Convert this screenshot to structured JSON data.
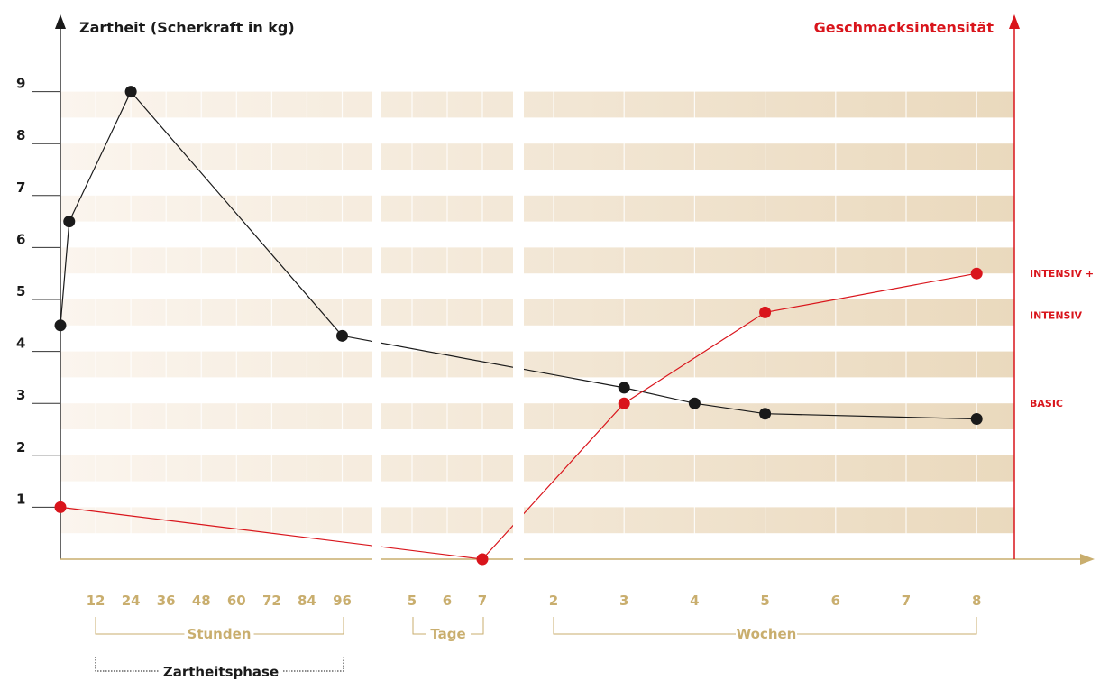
{
  "chart_data": {
    "type": "line",
    "y_left_label": "Zartheit (Scherkraft in kg)",
    "y_right_label": "Geschmacksintensität",
    "ylim": [
      0,
      9
    ],
    "y_ticks": [
      "1",
      "2",
      "3",
      "4",
      "5",
      "6",
      "7",
      "8",
      "9"
    ],
    "x_sections": [
      {
        "label": "Stunden",
        "ticks": [
          "12",
          "24",
          "36",
          "48",
          "60",
          "72",
          "84",
          "96"
        ]
      },
      {
        "label": "Tage",
        "ticks": [
          "5",
          "6",
          "7"
        ]
      },
      {
        "label": "Wochen",
        "ticks": [
          "2",
          "3",
          "4",
          "5",
          "6",
          "7",
          "8"
        ]
      }
    ],
    "phase_label": "Zartheitsphase",
    "right_axis_levels": [
      {
        "label": "INTENSIV +",
        "value": 5.5
      },
      {
        "label": "INTENSIV",
        "value": 4.7
      },
      {
        "label": "BASIC",
        "value": 3.0
      }
    ],
    "series": [
      {
        "color": "#1a1a1a",
        "points": [
          {
            "section": "Stunden",
            "x": 0,
            "y": 4.5
          },
          {
            "section": "Stunden",
            "x": 3,
            "y": 6.5
          },
          {
            "section": "Stunden",
            "x": 24,
            "y": 9.0
          },
          {
            "section": "Stunden",
            "x": 96,
            "y": 4.3
          },
          {
            "section": "Wochen",
            "x": 3,
            "y": 3.3
          },
          {
            "section": "Wochen",
            "x": 4,
            "y": 3.0
          },
          {
            "section": "Wochen",
            "x": 5,
            "y": 2.8
          },
          {
            "section": "Wochen",
            "x": 8,
            "y": 2.7
          }
        ]
      },
      {
        "color": "#d9151c",
        "points": [
          {
            "section": "Stunden",
            "x": 0,
            "y": 1.0
          },
          {
            "section": "Tage",
            "x": 7,
            "y": 0.0
          },
          {
            "section": "Wochen",
            "x": 3,
            "y": 3.0
          },
          {
            "section": "Wochen",
            "x": 5,
            "y": 4.75
          },
          {
            "section": "Wochen",
            "x": 8,
            "y": 5.5
          }
        ]
      }
    ],
    "colors": {
      "axis_text": "#c9ae6e",
      "band_light": "#f7ede0",
      "band_dark": "#ecdcc0",
      "black": "#1a1a1a",
      "red": "#d9151c"
    }
  }
}
